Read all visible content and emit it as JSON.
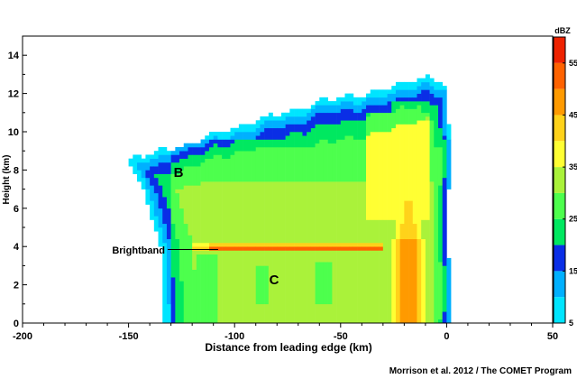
{
  "chart_data": {
    "type": "heatmap",
    "title": "",
    "xlabel": "Distance from leading edge (km)",
    "ylabel": "Height (km)",
    "xlim": [
      -200,
      50
    ],
    "ylim": [
      0,
      15
    ],
    "x_ticks": [
      -200,
      -150,
      -100,
      -50,
      0,
      50
    ],
    "y_ticks": [
      0,
      2,
      4,
      6,
      8,
      10,
      12,
      14
    ],
    "grid": false,
    "colorbar": {
      "label": "dBZ",
      "range": [
        5,
        60
      ],
      "ticks": [
        5,
        15,
        25,
        35,
        45,
        55
      ],
      "levels": [
        5,
        10,
        15,
        20,
        25,
        30,
        35,
        40,
        45,
        50,
        55
      ],
      "colors": [
        "#00e5ff",
        "#00b0ff",
        "#0a2ee6",
        "#00e860",
        "#4dff4d",
        "#aaf23a",
        "#ffff33",
        "#ffd21a",
        "#ff9a00",
        "#ff6200",
        "#ee2200"
      ]
    },
    "annotations": [
      {
        "text": "B",
        "x": -132,
        "y": 7.9
      },
      {
        "text": "C",
        "x": -79,
        "y": 2.3
      },
      {
        "text": "Brightband",
        "x": -135,
        "y": 3.95
      }
    ],
    "bright_band_height_km": 3.95,
    "leading_edge_km": 0,
    "echo_top_km": 12.9
  },
  "credit": "Morrison et al. 2012 / The COMET Program"
}
